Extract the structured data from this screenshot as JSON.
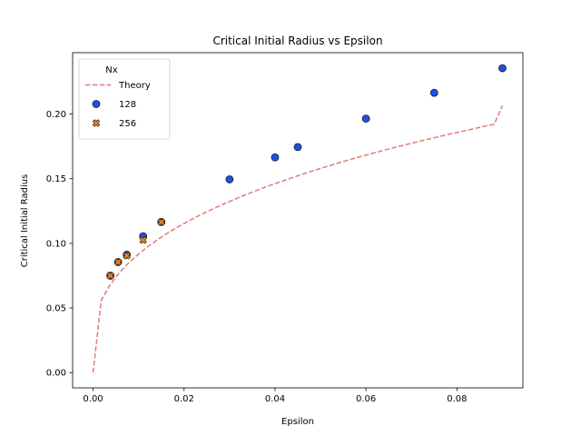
{
  "chart_data": {
    "type": "scatter",
    "title": "Critical Initial Radius vs Epsilon",
    "xlabel": "Epsilon",
    "ylabel": "Critical Initial Radius",
    "xlim": [
      -0.0045,
      0.0945
    ],
    "ylim": [
      -0.0118,
      0.2475
    ],
    "xticks": [
      0.0,
      0.02,
      0.04,
      0.06,
      0.08
    ],
    "xtick_labels": [
      "0.00",
      "0.02",
      "0.04",
      "0.06",
      "0.08"
    ],
    "yticks": [
      0.0,
      0.05,
      0.1,
      0.15,
      0.2
    ],
    "ytick_labels": [
      "0.00",
      "0.05",
      "0.10",
      "0.15",
      "0.20"
    ],
    "grid": false,
    "legend": {
      "title": "Nx",
      "placement": "top-left",
      "entries": [
        "Theory",
        "128",
        "256"
      ]
    },
    "series": [
      {
        "name": "Theory",
        "kind": "line",
        "style": "dashed",
        "color": "#e07b78",
        "x": [
          0.0,
          0.0018,
          0.0036,
          0.0054,
          0.0072,
          0.009,
          0.0108,
          0.0126,
          0.0144,
          0.0162,
          0.018,
          0.0198,
          0.0216,
          0.0234,
          0.0252,
          0.027,
          0.0288,
          0.0306,
          0.0324,
          0.0342,
          0.036,
          0.0378,
          0.0396,
          0.0414,
          0.0432,
          0.045,
          0.0468,
          0.0486,
          0.0504,
          0.0522,
          0.054,
          0.0558,
          0.0576,
          0.0594,
          0.0612,
          0.063,
          0.0648,
          0.0666,
          0.0684,
          0.0702,
          0.072,
          0.0738,
          0.0756,
          0.0774,
          0.0792,
          0.081,
          0.0828,
          0.0846,
          0.0864,
          0.0882,
          0.09
        ],
        "y": [
          0.0,
          0.0561,
          0.0672,
          0.0757,
          0.0827,
          0.0887,
          0.0941,
          0.0989,
          0.1034,
          0.1075,
          0.1114,
          0.115,
          0.1184,
          0.1217,
          0.1248,
          0.1277,
          0.1306,
          0.1333,
          0.136,
          0.1385,
          0.141,
          0.1434,
          0.1457,
          0.1479,
          0.1501,
          0.1523,
          0.1544,
          0.1564,
          0.1584,
          0.1603,
          0.1622,
          0.1641,
          0.1659,
          0.1677,
          0.1694,
          0.1711,
          0.1728,
          0.1744,
          0.176,
          0.1776,
          0.1792,
          0.1807,
          0.1822,
          0.1837,
          0.1852,
          0.1866,
          0.188,
          0.1894,
          0.1908,
          0.1921,
          0.2065
        ]
      },
      {
        "name": "128",
        "kind": "scatter",
        "marker": "circle",
        "color": "#1f4fe8",
        "x": [
          0.0038,
          0.0055,
          0.0074,
          0.011,
          0.015,
          0.03,
          0.04,
          0.045,
          0.06,
          0.075,
          0.09
        ],
        "y": [
          0.075,
          0.0855,
          0.0912,
          0.1055,
          0.1165,
          0.1495,
          0.1665,
          0.1745,
          0.1965,
          0.2165,
          0.2355
        ]
      },
      {
        "name": "256",
        "kind": "scatter",
        "marker": "x",
        "color": "#f07f14",
        "x": [
          0.0038,
          0.0055,
          0.0074,
          0.011,
          0.015
        ],
        "y": [
          0.075,
          0.0855,
          0.0905,
          0.1025,
          0.1165
        ]
      }
    ]
  }
}
